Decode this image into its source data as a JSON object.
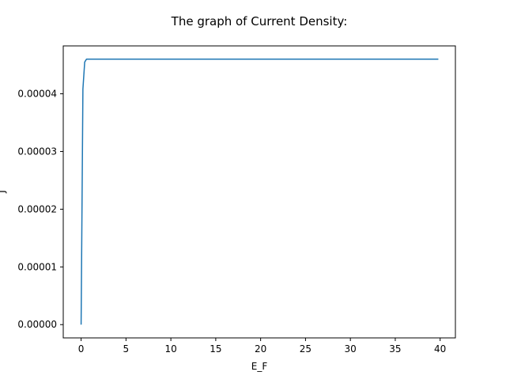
{
  "chart_data": {
    "type": "line",
    "title": "The graph of Current Density:",
    "xlabel": "E_F",
    "ylabel": "J",
    "xlim": [
      -1.99,
      41.7
    ],
    "ylim": [
      -2.3e-06,
      4.83e-05
    ],
    "xticks": [
      0,
      5,
      10,
      15,
      20,
      25,
      30,
      35,
      40
    ],
    "xtick_labels": [
      "0",
      "5",
      "10",
      "15",
      "20",
      "25",
      "30",
      "35",
      "40"
    ],
    "yticks": [
      0,
      1e-05,
      2e-05,
      3e-05,
      4e-05
    ],
    "ytick_labels": [
      "0.00000",
      "0.00001",
      "0.00002",
      "0.00003",
      "0.00004"
    ],
    "grid": false,
    "series": [
      {
        "color": "#1f77b4",
        "x": [
          0,
          0.2,
          0.4,
          0.6,
          1.0,
          2,
          5,
          10,
          15,
          20,
          25,
          30,
          35,
          39.8
        ],
        "y": [
          0,
          4.08e-05,
          4.55e-05,
          4.6e-05,
          4.6e-05,
          4.6e-05,
          4.6e-05,
          4.6e-05,
          4.6e-05,
          4.6e-05,
          4.6e-05,
          4.6e-05,
          4.6e-05,
          4.6e-05
        ]
      }
    ]
  }
}
